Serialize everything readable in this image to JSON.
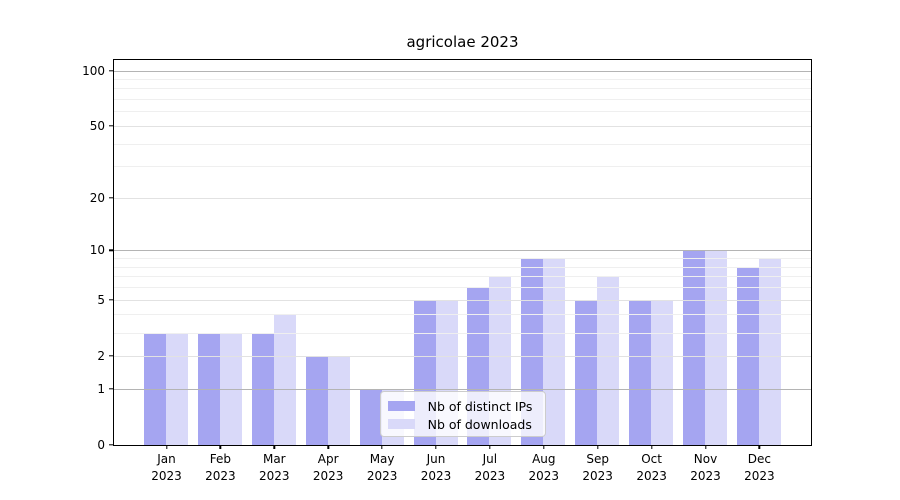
{
  "chart_data": {
    "type": "bar",
    "title": "agricolae 2023",
    "categories": [
      "Jan 2023",
      "Feb 2023",
      "Mar 2023",
      "Apr 2023",
      "May 2023",
      "Jun 2023",
      "Jul 2023",
      "Aug 2023",
      "Sep 2023",
      "Oct 2023",
      "Nov 2023",
      "Dec 2023"
    ],
    "series": [
      {
        "name": "Nb of distinct IPs",
        "color": "#a5a5f1",
        "values": [
          3,
          3,
          3,
          2,
          1,
          5,
          6,
          9,
          5,
          5,
          10,
          8
        ]
      },
      {
        "name": "Nb of downloads",
        "color": "#d9d9f9",
        "values": [
          3,
          3,
          4,
          2,
          1,
          5,
          7,
          9,
          7,
          5,
          10,
          9
        ]
      }
    ],
    "xlabel": "",
    "ylabel": "",
    "yscale": "log10(value+1)",
    "yticks": [
      0,
      1,
      2,
      5,
      10,
      20,
      50,
      100
    ],
    "ylim": [
      0,
      114
    ],
    "grid": true,
    "legend_position": "inside lower-center",
    "grid_major_color": "#b4b4b4",
    "grid_mid_color": "#e2e2e2",
    "grid_minor_color": "#efefef"
  }
}
